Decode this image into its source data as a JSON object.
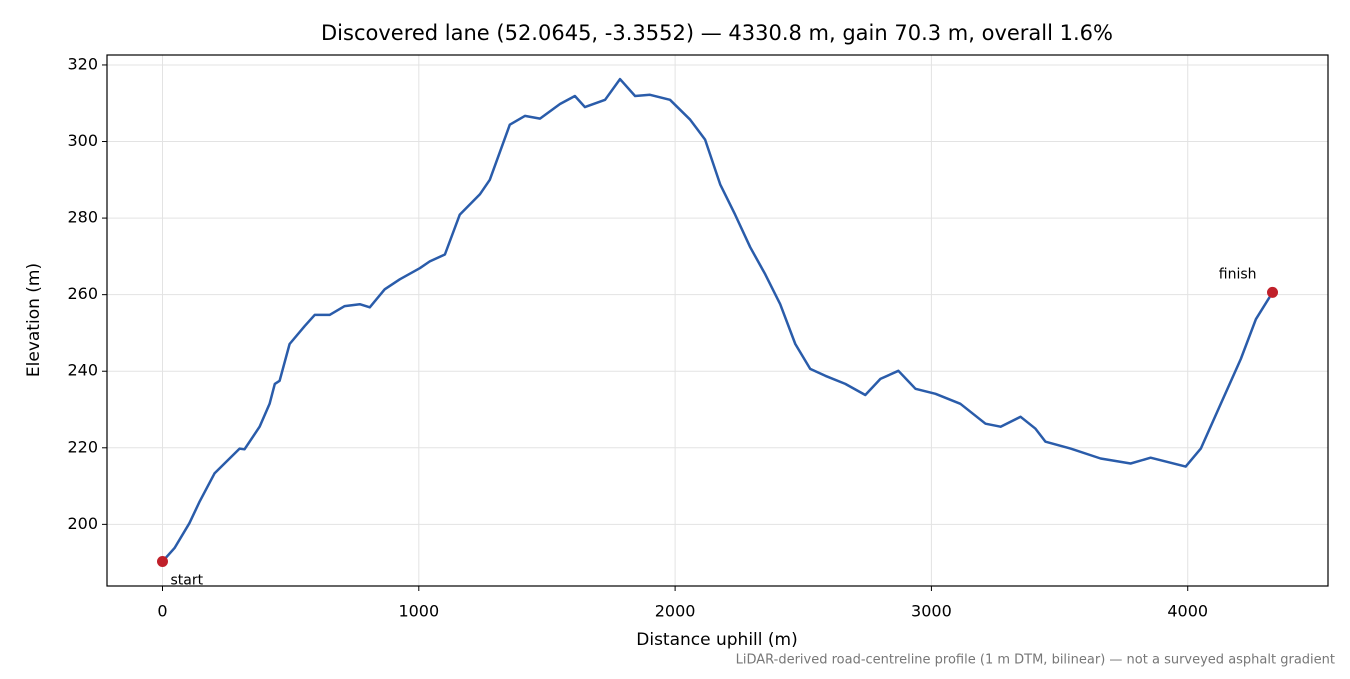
{
  "chart_data": {
    "type": "line",
    "title": "Discovered lane (52.0645, -3.3552) — 4330.8 m, gain 70.3 m, overall 1.6%",
    "xlabel": "Distance uphill (m)",
    "ylabel": "Elevation (m)",
    "footnote": "LiDAR-derived road-centreline profile (1 m DTM, bilinear) — not a surveyed asphalt gradient",
    "x": [
      0,
      47,
      105,
      145,
      203,
      242,
      301,
      320,
      379,
      418,
      438,
      457,
      496,
      555,
      594,
      652,
      711,
      770,
      809,
      867,
      926,
      1004,
      1043,
      1102,
      1160,
      1238,
      1277,
      1355,
      1414,
      1473,
      1551,
      1609,
      1648,
      1727,
      1785,
      1844,
      1902,
      1980,
      2059,
      2117,
      2176,
      2234,
      2293,
      2352,
      2410,
      2469,
      2527,
      2586,
      2664,
      2742,
      2801,
      2871,
      2938,
      3016,
      3113,
      3211,
      3270,
      3348,
      3406,
      3445,
      3543,
      3660,
      3777,
      3855,
      3992,
      4051,
      4129,
      4207,
      4266,
      4330.8
    ],
    "series": [
      {
        "name": "Elevation",
        "color": "#2a5caa",
        "values": [
          190.3,
          193.8,
          200.3,
          206,
          213.3,
          215.9,
          219.8,
          219.6,
          225.5,
          231.5,
          236.7,
          237.5,
          247.1,
          251.8,
          254.7,
          254.7,
          257,
          257.5,
          256.7,
          261.4,
          264,
          266.9,
          268.7,
          270.5,
          280.9,
          286.2,
          290,
          304.4,
          306.7,
          306,
          309.8,
          311.9,
          309,
          310.9,
          316.3,
          311.9,
          312.2,
          310.9,
          305.7,
          300.5,
          288.8,
          280.9,
          272.4,
          265.3,
          257.5,
          247.1,
          240.6,
          238.8,
          236.7,
          233.8,
          238,
          240.1,
          235.4,
          234.1,
          231.5,
          226.3,
          225.5,
          228.1,
          225,
          221.6,
          219.8,
          217.2,
          215.9,
          217.4,
          215.1,
          219.8,
          231.5,
          243.2,
          253.6,
          260.6
        ]
      }
    ],
    "annotations": [
      "start",
      "finish"
    ],
    "marker_color": "#c0202a",
    "xlim": [
      -216.5,
      4547.3
    ],
    "ylim": [
      183.9,
      322.6
    ],
    "xticks": [
      0,
      1000,
      2000,
      3000,
      4000
    ],
    "yticks": [
      200,
      220,
      240,
      260,
      280,
      300,
      320
    ],
    "grid": true
  }
}
